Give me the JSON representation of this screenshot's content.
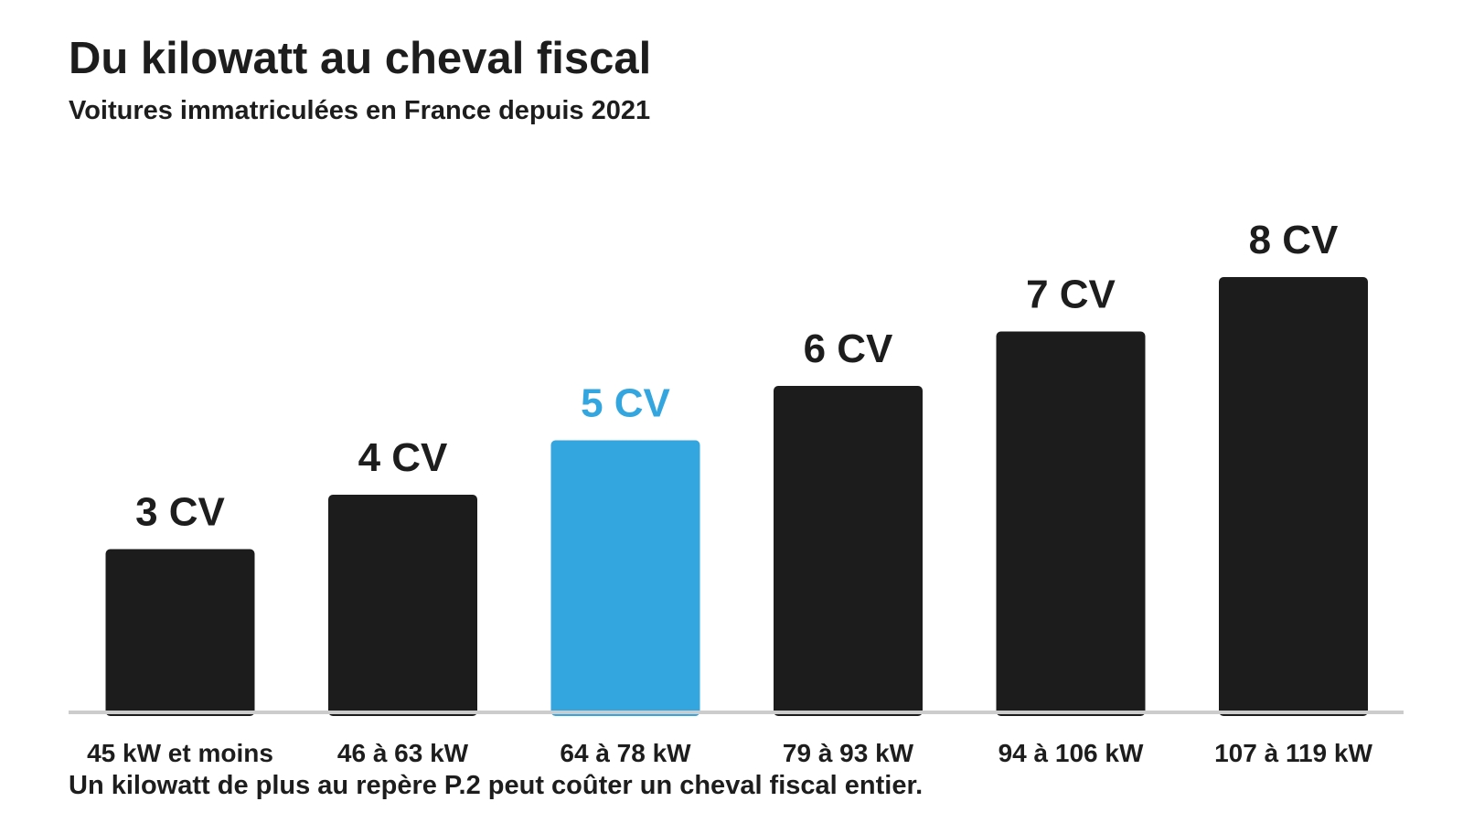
{
  "header": {
    "title": "Du kilowatt au cheval fiscal",
    "subtitle": "Voitures immatriculées en France depuis 2021"
  },
  "footer": {
    "note": "Un kilowatt de plus au repère P.2 peut coûter un cheval fiscal entier."
  },
  "colors": {
    "bar": "#1c1c1c",
    "highlight": "#33a6e0",
    "baseline": "#cccccc",
    "text": "#1d1d1d"
  },
  "chart_data": {
    "type": "bar",
    "categories": [
      "45 kW et moins",
      "46 à 63 kW",
      "64 à 78 kW",
      "79 à 93 kW",
      "94 à 106 kW",
      "107 à 119 kW"
    ],
    "values": [
      3,
      4,
      5,
      6,
      7,
      8
    ],
    "data_labels": [
      "3 CV",
      "4 CV",
      "5 CV",
      "6 CV",
      "7 CV",
      "8 CV"
    ],
    "highlight_category": "64 à 78 kW",
    "title": "Du kilowatt au cheval fiscal",
    "subtitle": "Voitures immatriculées en France depuis 2021",
    "xlabel": "",
    "ylabel": "",
    "ylim": [
      0,
      12
    ],
    "grid": false,
    "legend": "none"
  }
}
